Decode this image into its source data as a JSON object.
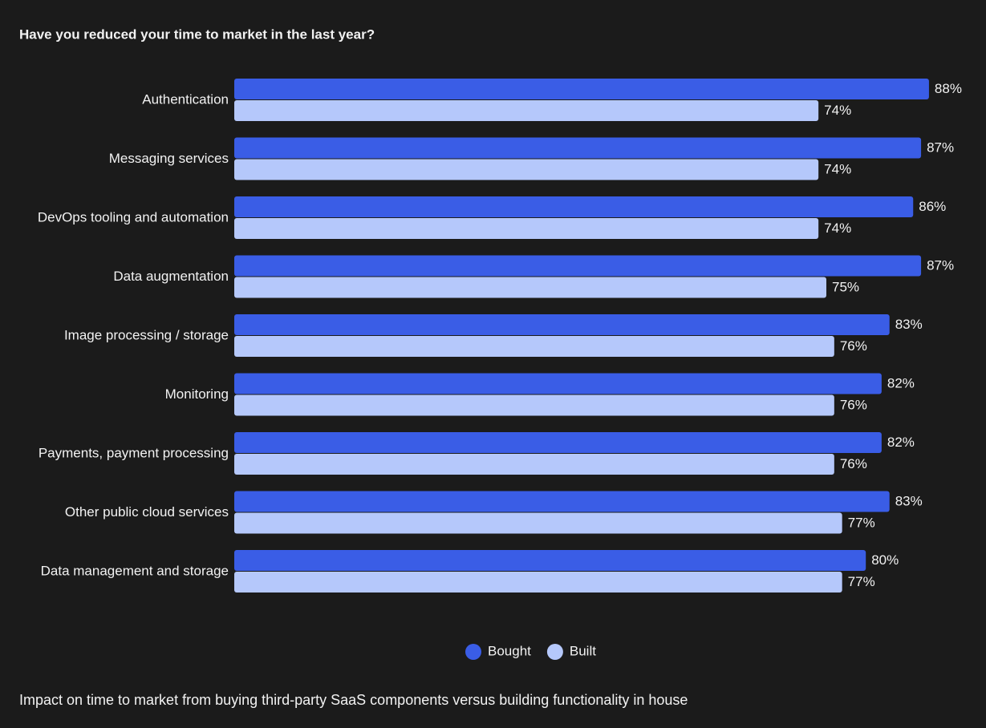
{
  "chart_data": {
    "type": "hbar",
    "title": "Have you reduced your time to market in the last year?",
    "caption": "Impact on time to market from buying third-party SaaS components versus building functionality in house",
    "categories": [
      "Authentication",
      "Messaging services",
      "DevOps tooling and automation",
      "Data augmentation",
      "Image processing / storage",
      "Monitoring",
      "Payments, payment processing",
      "Other public cloud services",
      "Data management and storage"
    ],
    "series": [
      {
        "name": "Bought",
        "color": "#3a5de6",
        "values": [
          88,
          87,
          86,
          87,
          83,
          82,
          82,
          83,
          80
        ],
        "value_labels": [
          "88%",
          "87%",
          "86%",
          "87%",
          "83%",
          "82%",
          "82%",
          "83%",
          "80%"
        ]
      },
      {
        "name": "Built",
        "color": "#b5c8fb",
        "values": [
          74,
          74,
          74,
          75,
          76,
          76,
          76,
          77,
          77
        ],
        "value_labels": [
          "74%",
          "74%",
          "74%",
          "75%",
          "76%",
          "76%",
          "76%",
          "77%",
          "77%"
        ]
      }
    ],
    "xlim": [
      0,
      100
    ]
  }
}
